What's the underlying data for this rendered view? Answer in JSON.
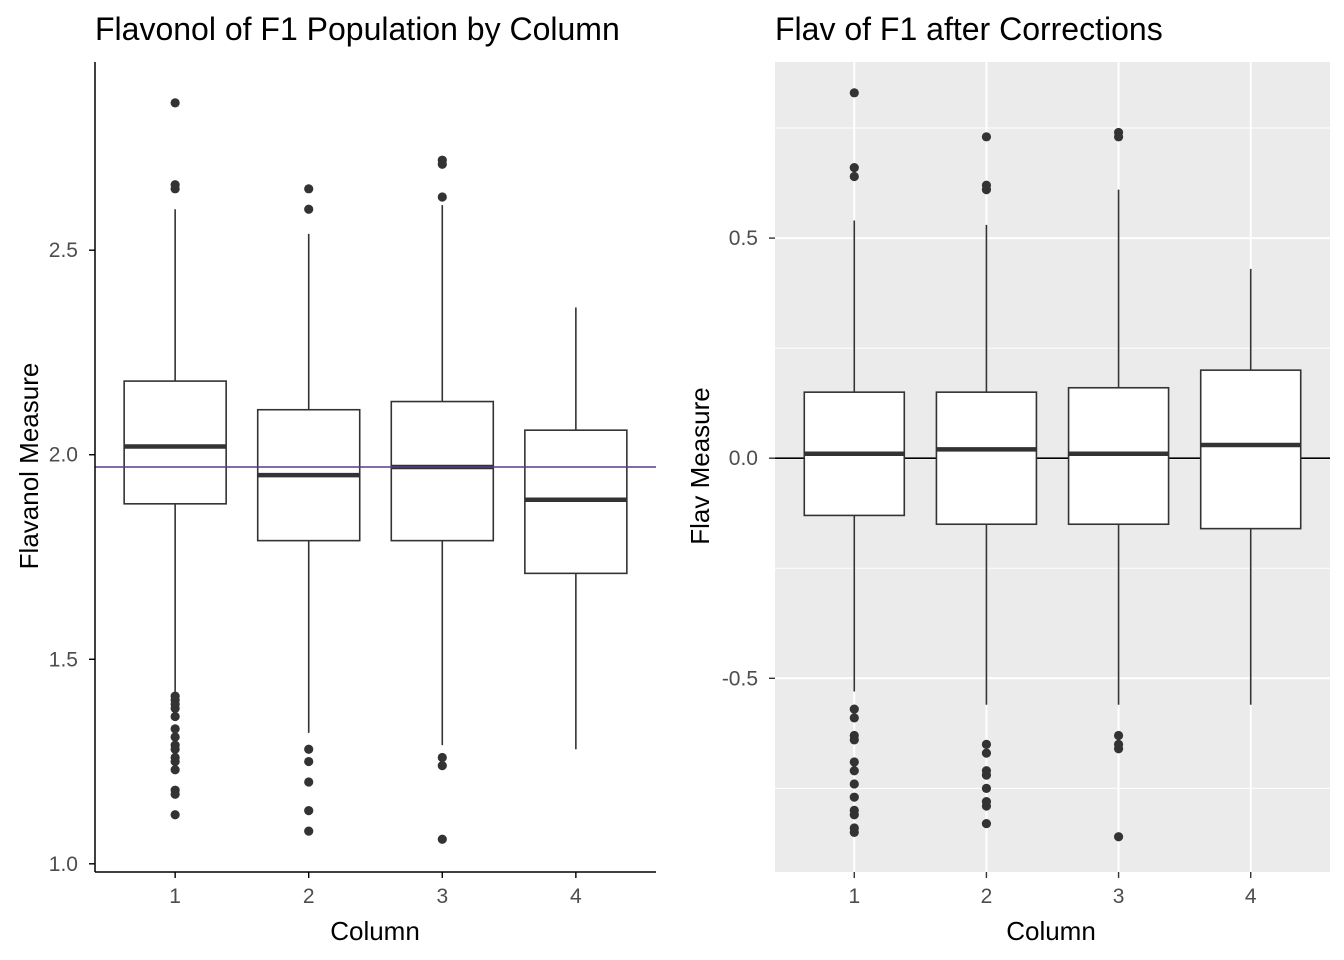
{
  "chart_data": [
    {
      "type": "boxplot",
      "theme": "classic",
      "title": "Flavonol of F1 Population by Column",
      "xlabel": "Column",
      "ylabel": "Flavanol Measure",
      "categories": [
        "1",
        "2",
        "3",
        "4"
      ],
      "ylim": [
        0.98,
        2.96
      ],
      "yticks": [
        1.0,
        1.5,
        2.0,
        2.5
      ],
      "ytick_labels": [
        "1.0",
        "1.5",
        "2.0",
        "2.5"
      ],
      "grid": false,
      "reference_line": {
        "y": 1.97,
        "color": "#5b3a8c"
      },
      "boxes": [
        {
          "category": "1",
          "whisker_low": 1.42,
          "q1": 1.88,
          "median": 2.02,
          "q3": 2.18,
          "whisker_high": 2.6,
          "outliers": [
            2.86,
            2.66,
            2.65,
            1.41,
            1.4,
            1.39,
            1.38,
            1.36,
            1.33,
            1.31,
            1.29,
            1.28,
            1.26,
            1.25,
            1.23,
            1.18,
            1.17,
            1.12
          ]
        },
        {
          "category": "2",
          "whisker_low": 1.32,
          "q1": 1.79,
          "median": 1.95,
          "q3": 2.11,
          "whisker_high": 2.54,
          "outliers": [
            2.65,
            2.6,
            1.28,
            1.25,
            1.2,
            1.13,
            1.08
          ]
        },
        {
          "category": "3",
          "whisker_low": 1.29,
          "q1": 1.79,
          "median": 1.97,
          "q3": 2.13,
          "whisker_high": 2.61,
          "outliers": [
            2.72,
            2.71,
            2.63,
            1.26,
            1.24,
            1.06
          ]
        },
        {
          "category": "4",
          "whisker_low": 1.28,
          "q1": 1.71,
          "median": 1.89,
          "q3": 2.06,
          "whisker_high": 2.36,
          "outliers": []
        }
      ]
    },
    {
      "type": "boxplot",
      "theme": "gray",
      "title": "Flav of F1 after Corrections",
      "xlabel": "Column",
      "ylabel": "Flav Measure",
      "categories": [
        "1",
        "2",
        "3",
        "4"
      ],
      "ylim": [
        -0.94,
        0.9
      ],
      "yticks": [
        -0.5,
        0.0,
        0.5
      ],
      "ytick_labels": [
        "-0.5",
        "0.0",
        "0.5"
      ],
      "grid": true,
      "reference_line": {
        "y": 0.0,
        "color": "#000000"
      },
      "boxes": [
        {
          "category": "1",
          "whisker_low": -0.53,
          "q1": -0.13,
          "median": 0.01,
          "q3": 0.15,
          "whisker_high": 0.54,
          "outliers": [
            0.83,
            0.66,
            0.64,
            -0.57,
            -0.59,
            -0.63,
            -0.64,
            -0.69,
            -0.71,
            -0.74,
            -0.77,
            -0.8,
            -0.81,
            -0.84,
            -0.85
          ]
        },
        {
          "category": "2",
          "whisker_low": -0.56,
          "q1": -0.15,
          "median": 0.02,
          "q3": 0.15,
          "whisker_high": 0.53,
          "outliers": [
            0.73,
            0.62,
            0.61,
            -0.65,
            -0.67,
            -0.71,
            -0.72,
            -0.75,
            -0.78,
            -0.79,
            -0.83
          ]
        },
        {
          "category": "3",
          "whisker_low": -0.56,
          "q1": -0.15,
          "median": 0.01,
          "q3": 0.16,
          "whisker_high": 0.61,
          "outliers": [
            0.74,
            0.73,
            -0.63,
            -0.65,
            -0.66,
            -0.86
          ]
        },
        {
          "category": "4",
          "whisker_low": -0.56,
          "q1": -0.16,
          "median": 0.03,
          "q3": 0.2,
          "whisker_high": 0.43,
          "outliers": []
        }
      ]
    }
  ]
}
